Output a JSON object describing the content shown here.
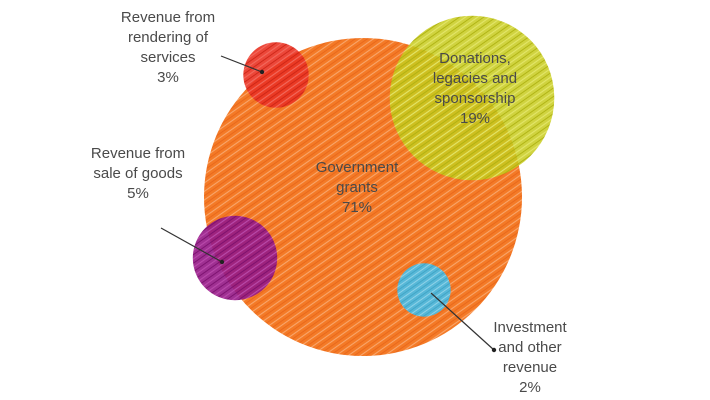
{
  "chart_data": {
    "type": "bubble",
    "title": "",
    "series": [
      {
        "key": "government",
        "label_lines": [
          "Government",
          "grants"
        ],
        "percent_label": "71%",
        "value": 71,
        "color": "#f47a26"
      },
      {
        "key": "donations",
        "label_lines": [
          "Donations,",
          "legacies and",
          "sponsorship"
        ],
        "percent_label": "19%",
        "value": 19,
        "color": "#c8cc1e"
      },
      {
        "key": "sale_goods",
        "label_lines": [
          "Revenue from",
          "sale of goods"
        ],
        "percent_label": "5%",
        "value": 5,
        "color": "#951a86"
      },
      {
        "key": "services",
        "label_lines": [
          "Revenue from",
          "rendering of",
          "services"
        ],
        "percent_label": "3%",
        "value": 3,
        "color": "#ea3324"
      },
      {
        "key": "investment",
        "label_lines": [
          "Investment",
          "and other",
          "revenue"
        ],
        "percent_label": "2%",
        "value": 2,
        "color": "#57b8d8"
      }
    ]
  }
}
